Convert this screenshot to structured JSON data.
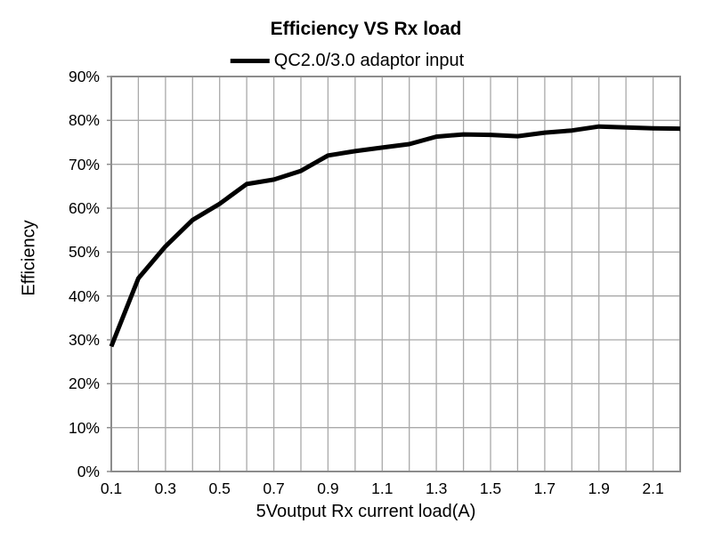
{
  "chart_data": {
    "type": "line",
    "title": "Efficiency VS Rx load",
    "xlabel": "5Voutput Rx current load(A)",
    "ylabel": "Efficiency",
    "legend_position": "top",
    "grid": true,
    "xlim": [
      0.1,
      2.2
    ],
    "ylim": [
      0,
      90
    ],
    "x_grid_step": 0.1,
    "y_grid_step": 10,
    "y_tick_labels": [
      "0%",
      "10%",
      "20%",
      "30%",
      "40%",
      "50%",
      "60%",
      "70%",
      "80%",
      "90%"
    ],
    "x_tick_labels": [
      "0.1",
      "0.3",
      "0.5",
      "0.7",
      "0.9",
      "1.1",
      "1.3",
      "1.5",
      "1.7",
      "1.9",
      "2.1"
    ],
    "x": [
      0.1,
      0.2,
      0.3,
      0.4,
      0.5,
      0.6,
      0.7,
      0.8,
      0.9,
      1.0,
      1.1,
      1.2,
      1.3,
      1.4,
      1.5,
      1.6,
      1.7,
      1.8,
      1.9,
      2.0,
      2.1,
      2.2
    ],
    "series": [
      {
        "name": "QC2.0/3.0 adaptor input",
        "color": "#000000",
        "unit": "%",
        "values": [
          28.5,
          44.0,
          51.3,
          57.3,
          61.0,
          65.5,
          66.5,
          68.5,
          72.0,
          73.0,
          73.8,
          74.6,
          76.3,
          76.8,
          76.7,
          76.4,
          77.2,
          77.7,
          78.6,
          78.4,
          78.2,
          78.1
        ]
      }
    ],
    "colors": {
      "line": "#000000",
      "grid": "#a9a9a9",
      "axis": "#8c8c8c",
      "text": "#000000",
      "background": "#ffffff"
    }
  }
}
